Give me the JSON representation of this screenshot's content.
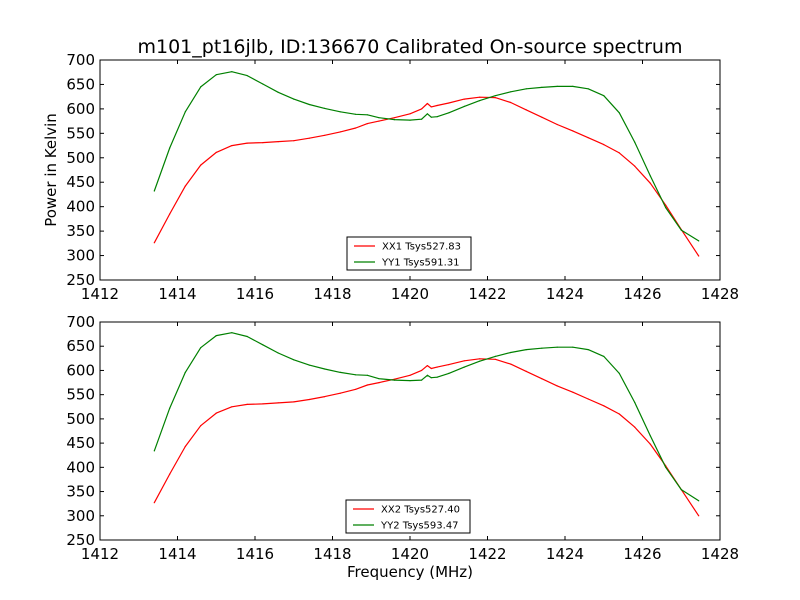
{
  "title": "m101_pt16jlb, ID:136670 Calibrated On-source spectrum",
  "shared_xlabel": "Frequency (MHz)",
  "chart_data": [
    {
      "type": "line",
      "title": "m101_pt16jlb, ID:136670 Calibrated On-source spectrum",
      "xlabel": "",
      "ylabel": "Power in Kelvin",
      "xlim": [
        1412,
        1428
      ],
      "ylim": [
        250,
        700
      ],
      "xticks": [
        1412,
        1414,
        1416,
        1418,
        1420,
        1422,
        1424,
        1426,
        1428
      ],
      "yticks": [
        250,
        300,
        350,
        400,
        450,
        500,
        550,
        600,
        650,
        700
      ],
      "grid": false,
      "legend_position": "lower-center",
      "series": [
        {
          "name": "XX1 Tsys527.83",
          "color": "#ff0000",
          "x": [
            1413.4,
            1413.8,
            1414.2,
            1414.6,
            1415.0,
            1415.4,
            1415.8,
            1416.2,
            1416.6,
            1417.0,
            1417.4,
            1417.8,
            1418.2,
            1418.6,
            1418.9,
            1419.2,
            1419.6,
            1420.0,
            1420.3,
            1420.45,
            1420.55,
            1420.7,
            1421.0,
            1421.4,
            1421.8,
            1422.2,
            1422.6,
            1423.0,
            1423.4,
            1423.8,
            1424.2,
            1424.6,
            1425.0,
            1425.4,
            1425.8,
            1426.2,
            1426.6,
            1427.0,
            1427.45
          ],
          "y": [
            326,
            385,
            442,
            485,
            511,
            525,
            530,
            531,
            533,
            535,
            540,
            546,
            553,
            561,
            570,
            575,
            582,
            590,
            600,
            611,
            604,
            607,
            612,
            620,
            624,
            623,
            613,
            598,
            583,
            568,
            555,
            541,
            527,
            510,
            483,
            448,
            403,
            353,
            299
          ]
        },
        {
          "name": "YY1 Tsys591.31",
          "color": "#008000",
          "x": [
            1413.4,
            1413.8,
            1414.2,
            1414.6,
            1415.0,
            1415.4,
            1415.8,
            1416.2,
            1416.6,
            1417.0,
            1417.4,
            1417.8,
            1418.2,
            1418.6,
            1418.9,
            1419.2,
            1419.6,
            1420.0,
            1420.3,
            1420.45,
            1420.55,
            1420.7,
            1421.0,
            1421.4,
            1421.8,
            1422.2,
            1422.6,
            1423.0,
            1423.4,
            1423.8,
            1424.2,
            1424.6,
            1425.0,
            1425.4,
            1425.8,
            1426.2,
            1426.6,
            1427.0,
            1427.45
          ],
          "y": [
            432,
            520,
            594,
            645,
            670,
            676,
            668,
            651,
            634,
            620,
            609,
            601,
            594,
            589,
            588,
            582,
            578,
            577,
            579,
            590,
            583,
            584,
            592,
            605,
            617,
            627,
            635,
            641,
            644,
            646,
            646,
            641,
            627,
            592,
            532,
            463,
            398,
            352,
            330
          ]
        }
      ]
    },
    {
      "type": "line",
      "title": "",
      "xlabel": "Frequency (MHz)",
      "ylabel": "",
      "xlim": [
        1412,
        1428
      ],
      "ylim": [
        250,
        700
      ],
      "xticks": [
        1412,
        1414,
        1416,
        1418,
        1420,
        1422,
        1424,
        1426,
        1428
      ],
      "yticks": [
        250,
        300,
        350,
        400,
        450,
        500,
        550,
        600,
        650,
        700
      ],
      "grid": false,
      "legend_position": "lower-center",
      "series": [
        {
          "name": "XX2 Tsys527.40",
          "color": "#ff0000",
          "x": [
            1413.4,
            1413.8,
            1414.2,
            1414.6,
            1415.0,
            1415.4,
            1415.8,
            1416.2,
            1416.6,
            1417.0,
            1417.4,
            1417.8,
            1418.2,
            1418.6,
            1418.9,
            1419.2,
            1419.6,
            1420.0,
            1420.3,
            1420.45,
            1420.55,
            1420.7,
            1421.0,
            1421.4,
            1421.8,
            1422.2,
            1422.6,
            1423.0,
            1423.4,
            1423.8,
            1424.2,
            1424.6,
            1425.0,
            1425.4,
            1425.8,
            1426.2,
            1426.6,
            1427.0,
            1427.45
          ],
          "y": [
            327,
            386,
            443,
            486,
            512,
            525,
            530,
            531,
            533,
            535,
            540,
            546,
            553,
            561,
            570,
            575,
            582,
            590,
            600,
            610,
            604,
            607,
            612,
            620,
            624,
            623,
            613,
            598,
            583,
            568,
            555,
            541,
            527,
            510,
            483,
            448,
            403,
            354,
            300
          ]
        },
        {
          "name": "YY2 Tsys593.47",
          "color": "#008000",
          "x": [
            1413.4,
            1413.8,
            1414.2,
            1414.6,
            1415.0,
            1415.4,
            1415.8,
            1416.2,
            1416.6,
            1417.0,
            1417.4,
            1417.8,
            1418.2,
            1418.6,
            1418.9,
            1419.2,
            1419.6,
            1420.0,
            1420.3,
            1420.45,
            1420.55,
            1420.7,
            1421.0,
            1421.4,
            1421.8,
            1422.2,
            1422.6,
            1423.0,
            1423.4,
            1423.8,
            1424.2,
            1424.6,
            1425.0,
            1425.4,
            1425.8,
            1426.2,
            1426.6,
            1427.0,
            1427.45
          ],
          "y": [
            434,
            522,
            596,
            647,
            672,
            678,
            670,
            653,
            636,
            622,
            611,
            603,
            596,
            591,
            590,
            583,
            580,
            579,
            580,
            590,
            585,
            586,
            594,
            607,
            619,
            629,
            637,
            643,
            646,
            648,
            648,
            643,
            629,
            594,
            534,
            465,
            400,
            354,
            331
          ]
        }
      ]
    }
  ]
}
